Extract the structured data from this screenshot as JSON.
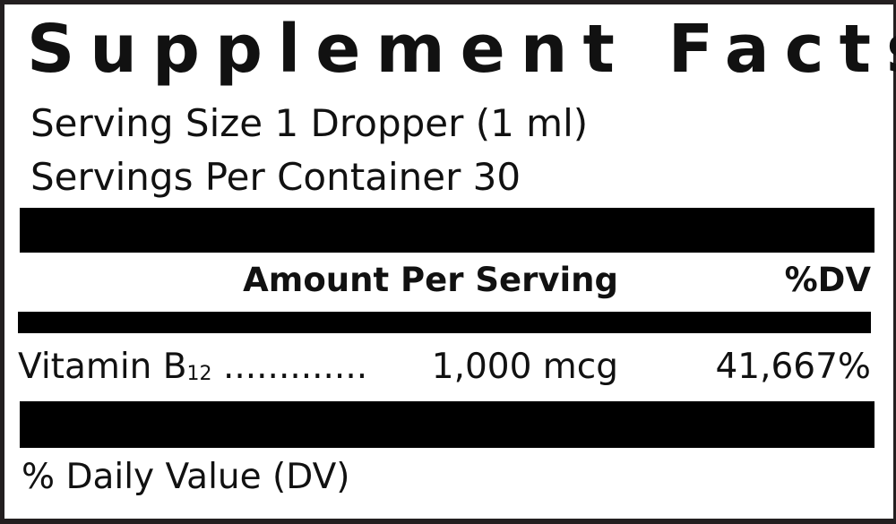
{
  "label": {
    "title": "Supplement Facts",
    "serving_size": "Serving Size 1 Dropper (1 ml)",
    "servings_per_container": "Servings Per Container 30",
    "header": {
      "amount": "Amount Per Serving",
      "dv": "%DV"
    },
    "rows": [
      {
        "name": "Vitamin B",
        "subscript": "12",
        "leader": ".............",
        "amount": "1,000 mcg",
        "dv": "41,667%"
      }
    ],
    "footnote": "% Daily Value (DV)"
  }
}
